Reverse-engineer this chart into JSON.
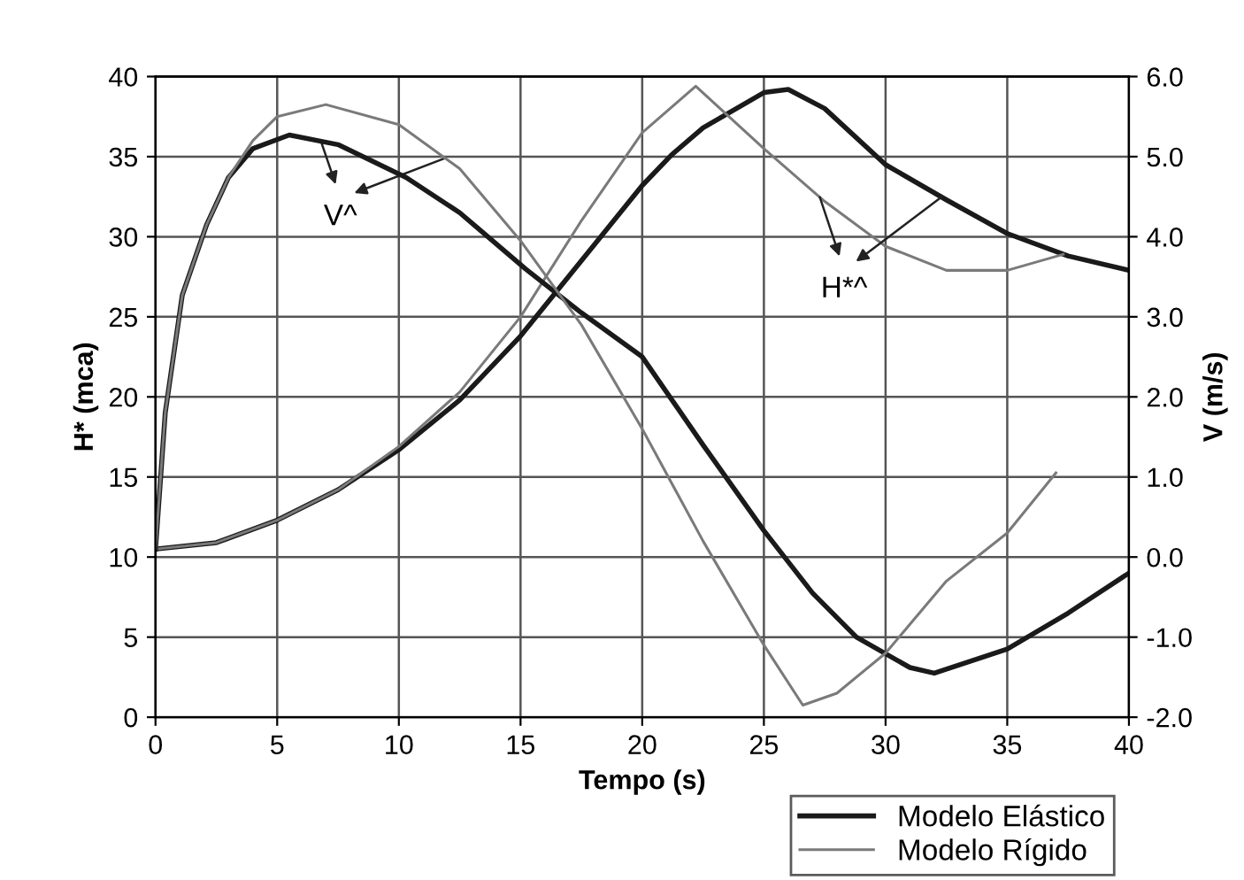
{
  "chart_data": {
    "type": "line",
    "xlabel": "Tempo (s)",
    "ylabel": "H* (mca)",
    "y2label": "V (m/s)",
    "series": [
      {
        "name": "Modelo Elástico",
        "color": "#1a1a1a",
        "x": [
          0,
          2.5,
          5,
          7.5,
          10,
          12.5,
          15,
          17.5,
          20,
          21.2,
          22.5,
          25,
          26,
          27.5,
          30,
          32.5,
          35,
          37.5,
          40
        ],
        "values": [
          10.5,
          10.9,
          12.3,
          14.2,
          16.7,
          19.8,
          23.8,
          28.5,
          33.2,
          35.1,
          36.8,
          39.0,
          39.2,
          38.0,
          34.5,
          32.3,
          30.2,
          28.8,
          27.9
        ]
      },
      {
        "color": "#7a7a7a",
        "x": [
          0,
          2.5,
          5,
          7.5,
          10,
          12.5,
          15,
          17.5,
          20,
          22.2,
          25,
          27.5,
          30,
          32.5,
          35,
          37.3
        ],
        "values": [
          10.5,
          10.9,
          12.3,
          14.2,
          16.9,
          20.3,
          25.0,
          31.0,
          36.5,
          39.4,
          35.5,
          32.2,
          29.4,
          27.9,
          27.9,
          28.9
        ]
      },
      {
        "color": "#1a1a1a",
        "axis": "y2",
        "x": [
          0,
          0.4,
          1.1,
          2.1,
          3,
          4,
          5.5,
          7.5,
          10.3,
          12.5,
          15.2,
          17.5,
          20,
          22.5,
          25,
          27,
          28.8,
          31,
          32,
          35,
          37.5,
          40
        ],
        "values": [
          0.1,
          1.8,
          3.27,
          4.15,
          4.74,
          5.1,
          5.27,
          5.15,
          4.74,
          4.3,
          3.6,
          3.05,
          2.5,
          1.4,
          0.33,
          -0.45,
          -1.0,
          -1.38,
          -1.45,
          -1.15,
          -0.7,
          -0.2
        ]
      },
      {
        "name": "Modelo Rígido",
        "color": "#7a7a7a",
        "axis": "y2",
        "x": [
          0,
          0.4,
          1.1,
          2.1,
          3,
          4,
          5,
          7,
          10,
          12.5,
          15,
          17.5,
          20,
          22.5,
          25,
          26.6,
          28,
          30,
          32.5,
          35,
          37
        ],
        "values": [
          0.1,
          1.8,
          3.27,
          4.15,
          4.74,
          5.2,
          5.5,
          5.65,
          5.4,
          4.85,
          3.95,
          2.9,
          1.6,
          0.2,
          -1.1,
          -1.85,
          -1.7,
          -1.2,
          -0.3,
          0.3,
          1.05
        ]
      }
    ],
    "annotations": [
      "V^",
      "H*^"
    ],
    "xlim": [
      0,
      40
    ],
    "xticks": [
      0,
      5,
      10,
      15,
      20,
      25,
      30,
      35,
      40
    ],
    "ylim": [
      0,
      40
    ],
    "yticks": [
      0,
      5,
      10,
      15,
      20,
      25,
      30,
      35,
      40
    ],
    "y2lim": [
      -2,
      6
    ],
    "y2ticks": [
      {
        "value": -2,
        "label": "-2.0"
      },
      {
        "value": -1,
        "label": "-1.0"
      },
      {
        "value": 0,
        "label": "0.0"
      },
      {
        "value": 1,
        "label": "1.0"
      },
      {
        "value": 2,
        "label": "2.0"
      },
      {
        "value": 3,
        "label": "3.0"
      },
      {
        "value": 4,
        "label": "4.0"
      },
      {
        "value": 5,
        "label": "5.0"
      },
      {
        "value": 6,
        "label": "6.0"
      }
    ],
    "grid": true,
    "legend": "bottom right"
  }
}
